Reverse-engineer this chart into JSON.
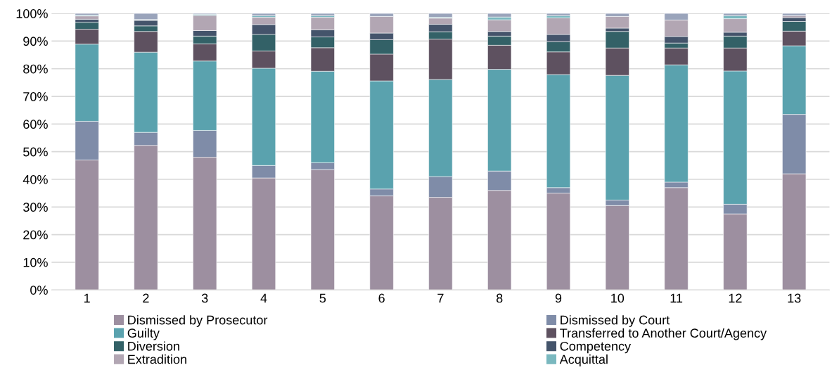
{
  "chart_data": {
    "type": "bar",
    "stacked": true,
    "categories": [
      "1",
      "2",
      "3",
      "4",
      "5",
      "6",
      "7",
      "8",
      "9",
      "10",
      "11",
      "12",
      "13"
    ],
    "ylim": [
      0,
      100
    ],
    "yticks": [
      {
        "value": 0,
        "label": "0%"
      },
      {
        "value": 10,
        "label": "10%"
      },
      {
        "value": 20,
        "label": "20%"
      },
      {
        "value": 30,
        "label": "30%"
      },
      {
        "value": 40,
        "label": "40%"
      },
      {
        "value": 50,
        "label": "50%"
      },
      {
        "value": 60,
        "label": "60%"
      },
      {
        "value": 70,
        "label": "70%"
      },
      {
        "value": 80,
        "label": "80%"
      },
      {
        "value": 90,
        "label": "90%"
      },
      {
        "value": 100,
        "label": "100%"
      }
    ],
    "grid": "y",
    "legend": "bottom",
    "series": [
      {
        "name": "Dismissed by Prosecutor",
        "color": "#9d8fa0",
        "values": [
          47,
          52.3,
          48,
          40.5,
          43.5,
          34,
          33.5,
          36,
          35,
          30.5,
          37,
          27.5,
          42
        ]
      },
      {
        "name": "Dismissed by Court",
        "color": "#7f8ca8",
        "values": [
          14,
          4.7,
          9.7,
          4.5,
          2.5,
          2.5,
          7.5,
          7,
          2,
          2,
          2,
          3.5,
          21.5
        ]
      },
      {
        "name": "Guilty",
        "color": "#5aa2ae",
        "values": [
          27.9,
          29.0,
          25.1,
          35.2,
          33.1,
          39.1,
          35.1,
          36.8,
          40.9,
          45.1,
          42.4,
          48.2,
          24.8
        ]
      },
      {
        "name": "Transferred to Another Court/Agency",
        "color": "#5e5160",
        "values": [
          5.4,
          7.5,
          6.2,
          6.2,
          8.5,
          9.7,
          14.6,
          8.7,
          8.2,
          9.9,
          6.1,
          8.3,
          5.3
        ]
      },
      {
        "name": "Diversion",
        "color": "#336167",
        "values": [
          2.5,
          2.0,
          2.8,
          6.0,
          3.9,
          5.2,
          2.7,
          3.3,
          3.7,
          6.0,
          1.8,
          4.3,
          3.5
        ]
      },
      {
        "name": "Competency",
        "color": "#44546b",
        "values": [
          1.1,
          2.0,
          2.0,
          3.6,
          2.6,
          2.4,
          2.7,
          1.7,
          2.6,
          1.2,
          2.4,
          1.4,
          1.4
        ]
      },
      {
        "name": "Extradition",
        "color": "#b2a6b3",
        "values": [
          1.2,
          0.2,
          5.5,
          2.6,
          4.5,
          6.0,
          2.2,
          4.2,
          6.0,
          4.2,
          5.9,
          4.9,
          0.7
        ]
      },
      {
        "name": "Acquittal",
        "color": "#7ab8bf",
        "values": [
          0.3,
          0.1,
          0.4,
          0.6,
          0.6,
          null,
          0.3,
          1.0,
          0.8,
          null,
          null,
          1.1,
          null
        ]
      },
      {
        "color": "#9aa4bb",
        "values": [
          0.6,
          2.2,
          0.3,
          0.8,
          0.8,
          1.1,
          1.4,
          1.3,
          0.8,
          1.1,
          2.4,
          0.8,
          0.8
        ]
      }
    ]
  }
}
